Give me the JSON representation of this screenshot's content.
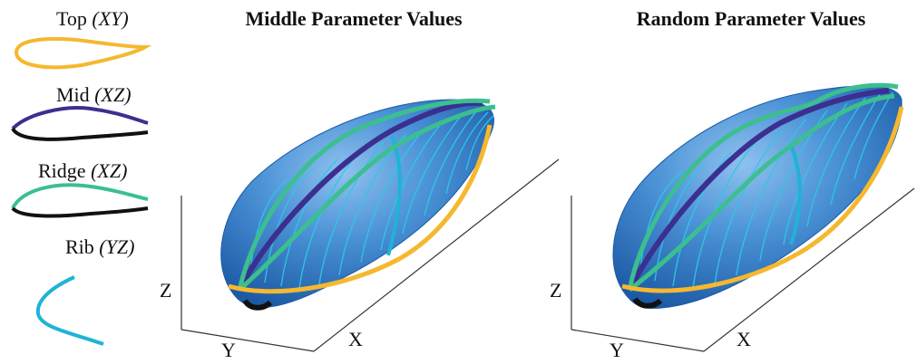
{
  "legend": [
    {
      "name": "Top",
      "plane": "(XY)",
      "color": "#f5b82e"
    },
    {
      "name": "Mid",
      "plane": "(XZ)",
      "color": "#3b2f8f"
    },
    {
      "name": "Ridge",
      "plane": "(XZ)",
      "color": "#3cbf8f"
    },
    {
      "name": "Rib",
      "plane": "(YZ)",
      "color": "#1fb3d6"
    }
  ],
  "panels": [
    {
      "title": "Middle Parameter Values",
      "axes": {
        "x": "X",
        "y": "Y",
        "z": "Z"
      }
    },
    {
      "title": "Random Parameter Values",
      "axes": {
        "x": "X",
        "y": "Y",
        "z": "Z"
      }
    }
  ],
  "colors": {
    "body_fill": "#3f86cc",
    "body_highlight": "#8fc1ee",
    "rib_line": "#2ec8e6",
    "profile_black": "#111111"
  }
}
